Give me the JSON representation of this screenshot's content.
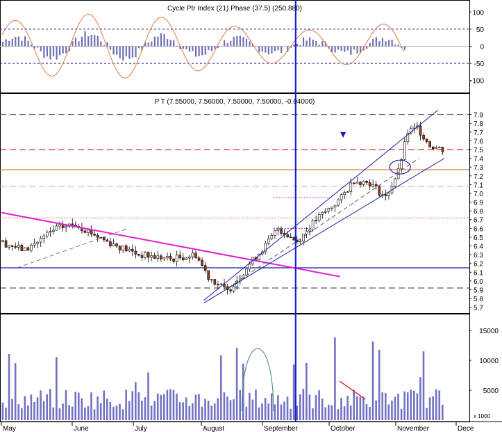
{
  "chart_data": [
    {
      "type": "bar",
      "panel": "cycle-indicator",
      "title": "Cycle  Ptr  Index (21)  Phase (37.5)  (250.880)",
      "ylim": [
        -125,
        125
      ],
      "yticks": [
        -100,
        -50,
        0,
        50,
        100
      ],
      "reference_lines": [
        50,
        -50
      ],
      "colors": {
        "bars": "#6f6fb5",
        "oscillator": "#e07a3a",
        "guide": "#1a1aa8"
      }
    },
    {
      "type": "candlestick",
      "panel": "price",
      "title": "P T (7.55000, 7.56000, 7.50000, 7.50000, -0.04000)",
      "ylim": [
        5.65,
        8.0
      ],
      "yticks": [
        "7.9",
        "7.8",
        "7.7",
        "7.6",
        "7.5",
        "7.4",
        "7.3",
        "7.2",
        "7.1",
        "7.0",
        "6.9",
        "6.8",
        "6.7",
        "6.6",
        "6.5",
        "6.4",
        "6.3",
        "6.2",
        "6.1",
        "6.0",
        "5.9",
        "5.8",
        "5.7"
      ],
      "last": {
        "open": 7.55,
        "high": 7.56,
        "low": 7.5,
        "close": 7.5,
        "change": -0.04
      },
      "horizontal_lines": [
        {
          "value": 7.9,
          "style": "dashed",
          "color": "#555555"
        },
        {
          "value": 7.5,
          "style": "dashed",
          "color": "#c00000"
        },
        {
          "value": 7.27,
          "style": "solid",
          "color": "#e07a3a"
        },
        {
          "value": 7.08,
          "style": "dashed",
          "color": "#e0a0a0"
        },
        {
          "value": 6.72,
          "style": "dotted",
          "color": "#e07a3a"
        },
        {
          "value": 6.15,
          "style": "solid",
          "color": "#1a1aa8"
        },
        {
          "value": 5.92,
          "style": "dashed",
          "color": "#333333"
        }
      ],
      "colors": {
        "up": "#ffffff",
        "down": "#a03a1a",
        "channel": "#1a1aa8",
        "downtrend": "#e020d0"
      }
    },
    {
      "type": "bar",
      "panel": "volume",
      "ylim": [
        0,
        17000
      ],
      "yticks": [
        5000,
        10000,
        15000
      ],
      "unit": "x 1000",
      "colors": {
        "bars": "#7272c4"
      }
    }
  ],
  "x_axis": {
    "months": [
      "May",
      "June",
      "July",
      "August",
      "September",
      "October",
      "November",
      "Dece"
    ]
  }
}
